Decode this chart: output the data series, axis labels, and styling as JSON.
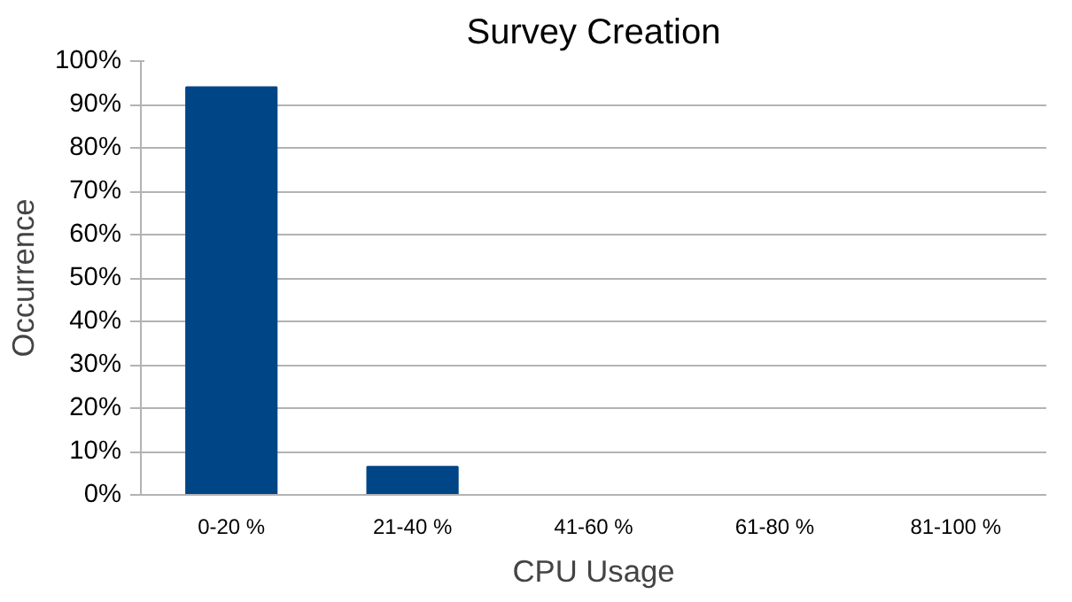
{
  "chart_data": {
    "type": "bar",
    "title": "Survey Creation",
    "xlabel": "CPU Usage",
    "ylabel": "Occurrence",
    "categories": [
      "0-20 %",
      "21-40 %",
      "41-60 %",
      "61-80 %",
      "81-100 %"
    ],
    "values": [
      94,
      6.5,
      0,
      0,
      0
    ],
    "color": "#004586",
    "ylim": [
      0,
      100
    ],
    "yticks": [
      {
        "value": 0,
        "label": "0%"
      },
      {
        "value": 10,
        "label": "10%"
      },
      {
        "value": 20,
        "label": "20%"
      },
      {
        "value": 30,
        "label": "30%"
      },
      {
        "value": 40,
        "label": "40%"
      },
      {
        "value": 50,
        "label": "50%"
      },
      {
        "value": 60,
        "label": "60%"
      },
      {
        "value": 70,
        "label": "70%"
      },
      {
        "value": 80,
        "label": "80%"
      },
      {
        "value": 90,
        "label": "90%"
      },
      {
        "value": 100,
        "label": "100%"
      }
    ],
    "grid": "y"
  }
}
